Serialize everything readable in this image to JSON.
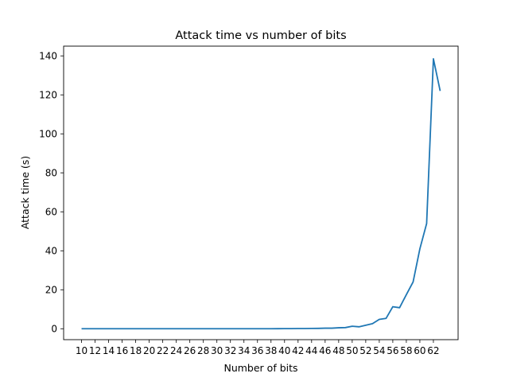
{
  "chart_data": {
    "type": "line",
    "title": "Attack time vs number of bits",
    "xlabel": "Number of bits",
    "ylabel": "Attack time (s)",
    "line_color": "#1f77b4",
    "grid": false,
    "ylim": [
      -5.6,
      145.0
    ],
    "x_ticks": [
      10,
      12,
      14,
      16,
      18,
      20,
      22,
      24,
      26,
      28,
      30,
      32,
      34,
      36,
      38,
      40,
      42,
      44,
      46,
      48,
      50,
      52,
      54,
      56,
      58,
      60,
      62
    ],
    "y_ticks": [
      0,
      20,
      40,
      60,
      80,
      100,
      120,
      140
    ],
    "series": [
      {
        "x": [
          10,
          11,
          12,
          13,
          14,
          15,
          16,
          17,
          18,
          19,
          20,
          21,
          22,
          23,
          24,
          25,
          26,
          27,
          28,
          29,
          30,
          31,
          32,
          33,
          34,
          35,
          36,
          37,
          38,
          39,
          40,
          41,
          42,
          43,
          44,
          45,
          46,
          47,
          48,
          49,
          50,
          51,
          52,
          53,
          54,
          55,
          56,
          57,
          58,
          59,
          60,
          61,
          62,
          63
        ],
        "y": [
          0,
          0,
          0,
          0,
          0,
          0,
          0,
          0,
          0,
          0,
          0,
          0,
          0,
          0,
          0,
          0,
          0,
          0,
          0,
          0,
          0,
          0,
          0,
          0,
          0,
          0,
          0,
          0,
          0.02,
          0.03,
          0.05,
          0.07,
          0.1,
          0.12,
          0.15,
          0.2,
          0.3,
          0.3,
          0.5,
          0.6,
          1.3,
          1.0,
          1.8,
          2.6,
          4.8,
          5.3,
          11.3,
          10.8,
          17.5,
          24.0,
          41.0,
          54.0,
          138.5,
          122.0
        ]
      }
    ]
  }
}
